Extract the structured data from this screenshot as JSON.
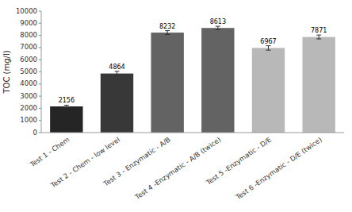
{
  "chart_data": {
    "type": "bar",
    "categories": [
      "Test 1 - Chem",
      "Test 2 - Chem - low level",
      "Test 3 - Enzymatic - A/B",
      "Test 4 -Enzymatic - A/B (twice)",
      "Test 5 -Enzymatic - D/E",
      "Test 6 -Enzymatic - D/E (twice)"
    ],
    "values": [
      2156,
      4864,
      8232,
      8613,
      6967,
      7871
    ],
    "errors": [
      100,
      180,
      160,
      140,
      180,
      160
    ],
    "colors": [
      "#252525",
      "#383838",
      "#636363",
      "#636363",
      "#b8b8b8",
      "#b8b8b8"
    ],
    "ylabel": "TOC (mg/l)",
    "ylim": [
      0,
      10000
    ],
    "yticks": [
      0,
      1000,
      2000,
      3000,
      4000,
      5000,
      6000,
      7000,
      8000,
      9000,
      10000
    ],
    "grid": false,
    "data_labels": true
  }
}
